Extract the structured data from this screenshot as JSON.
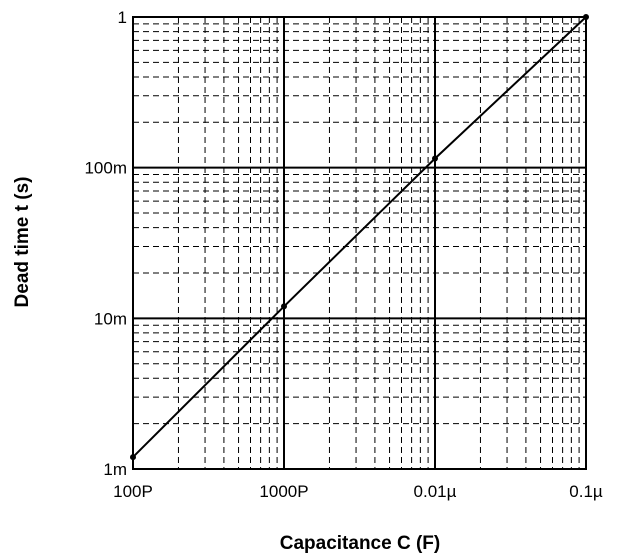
{
  "chart_data": {
    "type": "line",
    "title": "",
    "xlabel": "Capacitance C (F)",
    "ylabel": "Dead time t (s)",
    "x_scale": "log",
    "y_scale": "log",
    "xlim": [
      1e-10,
      1e-07
    ],
    "ylim": [
      0.001,
      1
    ],
    "x_ticks": [
      {
        "value": 1e-10,
        "label": "100P"
      },
      {
        "value": 1e-09,
        "label": "1000P"
      },
      {
        "value": 1e-08,
        "label": "0.01µ"
      },
      {
        "value": 1e-07,
        "label": "0.1µ"
      }
    ],
    "y_ticks": [
      {
        "value": 0.001,
        "label": "1m"
      },
      {
        "value": 0.01,
        "label": "10m"
      },
      {
        "value": 0.1,
        "label": "100m"
      },
      {
        "value": 1,
        "label": "1"
      }
    ],
    "grid": {
      "major": "solid",
      "minor": "dashed"
    },
    "series": [
      {
        "x": [
          1e-10,
          1e-09,
          1e-08,
          1e-07
        ],
        "y": [
          0.0012,
          0.012,
          0.115,
          1
        ]
      }
    ],
    "colors": {
      "line": "#000000",
      "grid": "#000000",
      "background": "#ffffff"
    }
  }
}
